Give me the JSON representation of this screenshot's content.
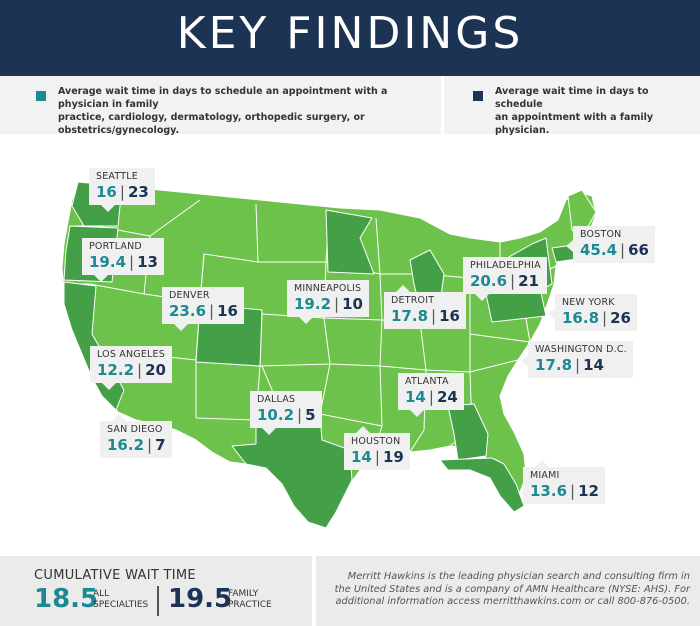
{
  "header": {
    "title": "KEY FINDINGS"
  },
  "legend": {
    "all_specialties": {
      "color": "#1b8a92",
      "line1": "Average wait time in days to schedule an appointment with a physician in family",
      "line2": "practice, cardiology, dermatology, orthopedic surgery, or obstetrics/gynecology."
    },
    "family_practice": {
      "color": "#1d3354",
      "line1": "Average wait time in days to schedule",
      "line2": "an appointment with a family physician."
    }
  },
  "colors": {
    "state_light": "#6cc24a",
    "state_highlight": "#43a047",
    "border": "#ffffff",
    "teal": "#1b8a92",
    "navy": "#1d3354"
  },
  "cities": [
    {
      "name": "SEATTLE",
      "all": "16",
      "family": "23"
    },
    {
      "name": "PORTLAND",
      "all": "19.4",
      "family": "13"
    },
    {
      "name": "DENVER",
      "all": "23.6",
      "family": "16"
    },
    {
      "name": "MINNEAPOLIS",
      "all": "19.2",
      "family": "10"
    },
    {
      "name": "DETROIT",
      "all": "17.8",
      "family": "16"
    },
    {
      "name": "PHILADELPHIA",
      "all": "20.6",
      "family": "21"
    },
    {
      "name": "BOSTON",
      "all": "45.4",
      "family": "66"
    },
    {
      "name": "NEW YORK",
      "all": "16.8",
      "family": "26"
    },
    {
      "name": "WASHINGTON D.C.",
      "all": "17.8",
      "family": "14"
    },
    {
      "name": "LOS ANGELES",
      "all": "12.2",
      "family": "20"
    },
    {
      "name": "DALLAS",
      "all": "10.2",
      "family": "5"
    },
    {
      "name": "ATLANTA",
      "all": "14",
      "family": "24"
    },
    {
      "name": "SAN DIEGO",
      "all": "16.2",
      "family": "7"
    },
    {
      "name": "HOUSTON",
      "all": "14",
      "family": "19"
    },
    {
      "name": "MIAMI",
      "all": "13.6",
      "family": "12"
    }
  ],
  "footer": {
    "cumulative_title": "CUMULATIVE WAIT TIME",
    "all_value": "18.5",
    "all_label": "ALL SPECIALTIES",
    "family_value": "19.5",
    "family_label": "FAMILY PRACTICE",
    "about_text": "Merritt Hawkins is the leading physician search and consulting firm in the United States and is a company of AMN Healthcare (NYSE: AHS). For additional information access merritthawkins.com or call 800-876-0500."
  }
}
